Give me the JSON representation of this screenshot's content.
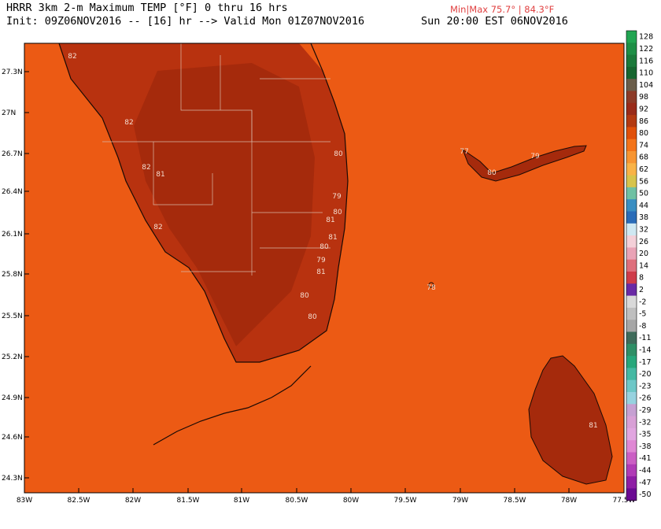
{
  "header": {
    "title_line1": "HRRR 3km 2-m Maximum TEMP [°F] 0 thru 16 hrs",
    "title_line2": "Init: 09Z06NOV2016 -- [16] hr --> Valid Mon 01Z07NOV2016",
    "minmax": "Min|Max 75.7° | 84.3°F",
    "valid_local": "Sun 20:00 EST 06NOV2016"
  },
  "map": {
    "lat_labels": [
      "27.3N",
      "27N",
      "26.7N",
      "26.4N",
      "26.1N",
      "25.8N",
      "25.5N",
      "25.2N",
      "24.9N",
      "24.6N",
      "24.3N"
    ],
    "lon_labels": [
      "83W",
      "82.5W",
      "82W",
      "81.5W",
      "81W",
      "80.5W",
      "80W",
      "79.5W",
      "79W",
      "78.5W",
      "78W",
      "77.5W"
    ],
    "point_values": [
      "82",
      "82",
      "82",
      "81",
      "82",
      "80",
      "79",
      "80",
      "81",
      "81",
      "80",
      "79",
      "81",
      "80",
      "80",
      "77",
      "80",
      "79",
      "81",
      "78"
    ]
  },
  "colorbar": {
    "levels": [
      "128",
      "122",
      "116",
      "110",
      "104",
      "98",
      "92",
      "86",
      "80",
      "74",
      "68",
      "62",
      "56",
      "50",
      "44",
      "38",
      "32",
      "26",
      "20",
      "14",
      "8",
      "2",
      "-2",
      "-5",
      "-8",
      "-11",
      "-14",
      "-17",
      "-20",
      "-23",
      "-26",
      "-29",
      "-32",
      "-35",
      "-38",
      "-41",
      "-44",
      "-47",
      "-50"
    ],
    "colors": [
      "#22a552",
      "#1e8f46",
      "#1b7a3b",
      "#176630",
      "#6a5d4a",
      "#8c3b28",
      "#992b1a",
      "#b33a12",
      "#e0500a",
      "#f3741a",
      "#f79532",
      "#f9b347",
      "#d7c44b",
      "#6fc1a3",
      "#3a8ec2",
      "#2b6cb8",
      "#cfe8f2",
      "#f4d0d8",
      "#e9a3b6",
      "#de6f7c",
      "#cf3c4a",
      "#6a2aa5",
      "#d9d9d9",
      "#bfbfbf",
      "#a6a6a6",
      "#3f6b5a",
      "#2f8f66",
      "#27a77b",
      "#45b9a3",
      "#6ec7c7",
      "#97d2df",
      "#c6a0d2",
      "#d8a0d6",
      "#e1a6e0",
      "#df88d4",
      "#cb5fc4",
      "#b03cb6",
      "#8e1ea5",
      "#6a0a93"
    ]
  }
}
